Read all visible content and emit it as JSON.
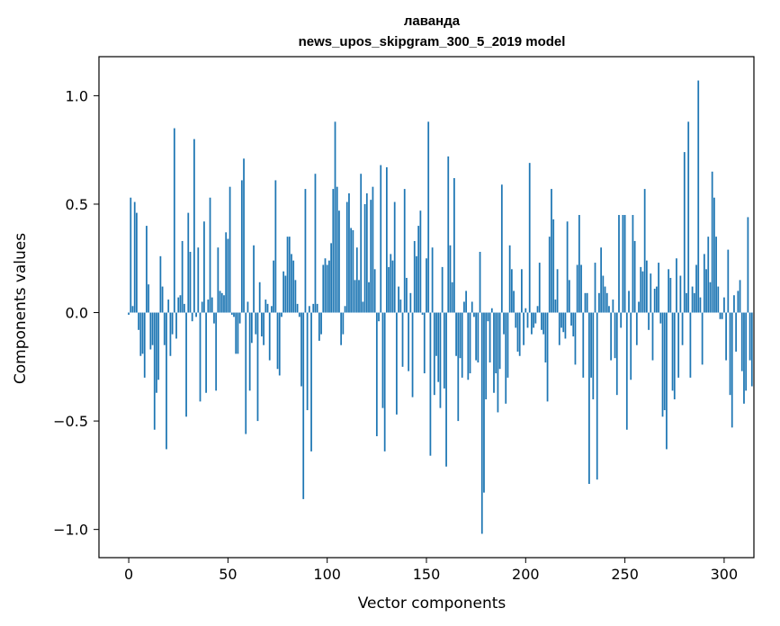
{
  "chart_data": {
    "type": "bar",
    "title": "лаванда",
    "subtitle": "news_upos_skipgram_300_5_2019 model",
    "xlabel": "Vector components",
    "ylabel": "Components values",
    "xlim": [
      -15,
      315
    ],
    "ylim": [
      -1.13,
      1.18
    ],
    "xticks": [
      0,
      50,
      100,
      150,
      200,
      250,
      300
    ],
    "xtick_labels": [
      "0",
      "50",
      "100",
      "150",
      "200",
      "250",
      "300"
    ],
    "yticks": [
      -1.0,
      -0.5,
      0.0,
      0.5,
      1.0
    ],
    "ytick_labels": [
      "−1.0",
      "−0.5",
      "0.0",
      "0.5",
      "1.0"
    ],
    "grid": false,
    "bar_color": "#1f77b4",
    "values": [
      -0.01,
      0.53,
      0.03,
      0.51,
      0.46,
      -0.08,
      -0.2,
      -0.19,
      -0.3,
      0.4,
      0.13,
      -0.17,
      -0.15,
      -0.54,
      -0.37,
      -0.31,
      0.26,
      0.12,
      -0.15,
      -0.63,
      0.06,
      -0.2,
      -0.1,
      0.85,
      -0.12,
      0.07,
      0.08,
      0.33,
      0.04,
      -0.48,
      0.46,
      0.28,
      -0.04,
      0.8,
      -0.02,
      0.3,
      -0.41,
      0.05,
      0.42,
      -0.37,
      0.06,
      0.53,
      0.07,
      -0.05,
      -0.36,
      0.3,
      0.1,
      0.09,
      0.08,
      0.37,
      0.34,
      0.58,
      -0.01,
      -0.02,
      -0.19,
      -0.19,
      -0.05,
      0.61,
      0.71,
      -0.56,
      0.05,
      -0.36,
      -0.14,
      0.31,
      -0.1,
      -0.5,
      0.14,
      -0.11,
      -0.15,
      0.06,
      0.04,
      -0.22,
      0.03,
      0.24,
      0.61,
      -0.26,
      -0.29,
      -0.02,
      0.19,
      0.17,
      0.35,
      0.35,
      0.27,
      0.24,
      0.15,
      0.04,
      -0.02,
      -0.34,
      -0.86,
      0.57,
      -0.45,
      0.03,
      -0.64,
      0.04,
      0.64,
      0.04,
      -0.13,
      -0.1,
      0.22,
      0.25,
      0.22,
      0.24,
      0.32,
      0.57,
      0.88,
      0.58,
      0.47,
      -0.15,
      -0.1,
      0.03,
      0.51,
      0.55,
      0.39,
      0.38,
      0.15,
      0.3,
      0.15,
      0.64,
      0.05,
      0.5,
      0.55,
      0.14,
      0.52,
      0.58,
      0.2,
      -0.57,
      -0.04,
      0.68,
      -0.44,
      -0.64,
      0.67,
      0.21,
      0.27,
      0.24,
      0.51,
      -0.47,
      0.12,
      0.06,
      -0.25,
      0.57,
      0.16,
      -0.27,
      0.09,
      -0.39,
      0.33,
      0.26,
      0.4,
      0.47,
      -0.01,
      -0.28,
      0.25,
      0.88,
      -0.66,
      0.3,
      -0.38,
      -0.2,
      -0.32,
      -0.44,
      0.21,
      -0.35,
      -0.71,
      0.72,
      0.31,
      0.14,
      0.62,
      -0.2,
      -0.5,
      -0.21,
      -0.3,
      0.05,
      0.1,
      -0.31,
      -0.28,
      0.05,
      -0.02,
      -0.22,
      -0.23,
      0.28,
      -1.02,
      -0.83,
      -0.4,
      -0.04,
      -0.23,
      0.02,
      -0.37,
      -0.28,
      -0.46,
      -0.26,
      0.59,
      -0.1,
      -0.42,
      -0.3,
      0.31,
      0.2,
      0.1,
      -0.07,
      -0.18,
      -0.2,
      0.2,
      -0.15,
      0.02,
      -0.07,
      0.69,
      -0.1,
      -0.07,
      -0.05,
      0.03,
      0.23,
      -0.08,
      -0.1,
      -0.23,
      -0.41,
      0.35,
      0.57,
      0.43,
      0.06,
      0.2,
      -0.15,
      -0.07,
      -0.09,
      -0.12,
      0.42,
      0.15,
      -0.06,
      -0.11,
      -0.24,
      0.22,
      0.45,
      0.22,
      -0.3,
      0.09,
      0.09,
      -0.79,
      -0.3,
      -0.4,
      0.23,
      -0.77,
      0.09,
      0.3,
      0.17,
      0.12,
      0.09,
      0.03,
      -0.22,
      0.06,
      -0.21,
      -0.38,
      0.45,
      -0.07,
      0.45,
      0.45,
      -0.54,
      0.1,
      -0.31,
      0.45,
      0.33,
      -0.15,
      0.05,
      0.21,
      0.19,
      0.57,
      0.24,
      -0.08,
      0.18,
      -0.22,
      0.11,
      0.12,
      0.23,
      -0.05,
      -0.48,
      -0.45,
      -0.63,
      0.2,
      0.16,
      -0.36,
      -0.4,
      0.25,
      -0.3,
      0.17,
      -0.15,
      0.74,
      0.09,
      0.88,
      -0.3,
      0.12,
      0.09,
      0.22,
      1.07,
      0.07,
      -0.24,
      0.27,
      0.2,
      0.35,
      0.14,
      0.65,
      0.53,
      0.35,
      0.12,
      -0.03,
      -0.03,
      0.07,
      -0.22,
      0.29,
      -0.38,
      -0.53,
      0.08,
      -0.18,
      0.1,
      0.15,
      -0.27,
      -0.42,
      -0.36,
      0.44,
      -0.22,
      -0.34
    ]
  }
}
